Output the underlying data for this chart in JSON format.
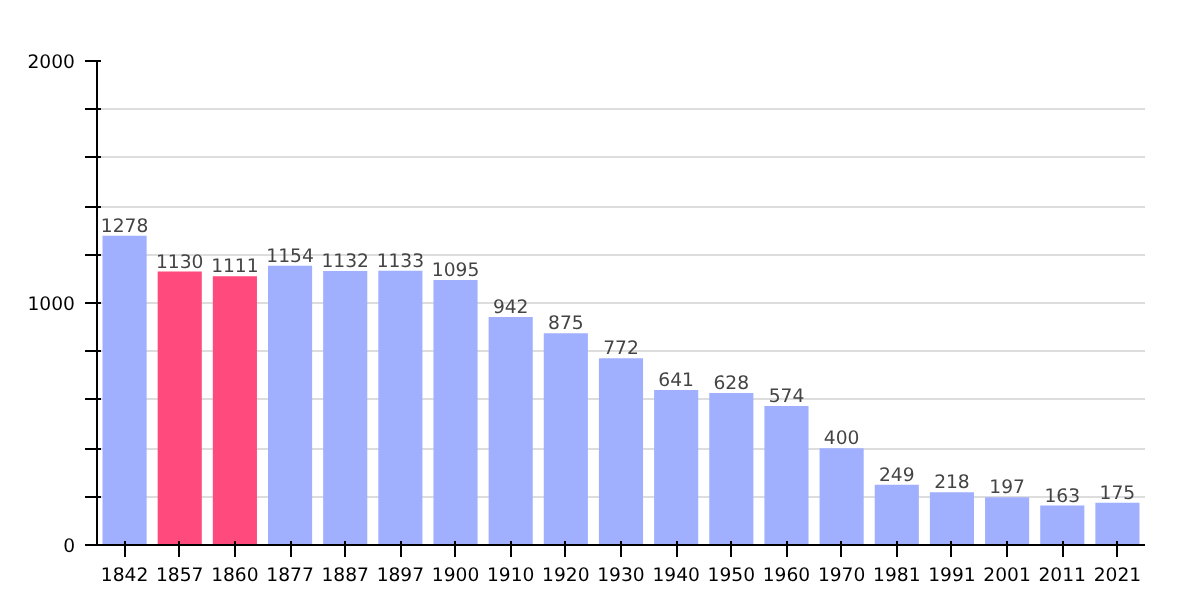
{
  "chart_data": {
    "type": "bar",
    "categories": [
      "1842",
      "1857",
      "1860",
      "1877",
      "1887",
      "1897",
      "1900",
      "1910",
      "1920",
      "1930",
      "1940",
      "1950",
      "1960",
      "1970",
      "1981",
      "1991",
      "2001",
      "2011",
      "2021"
    ],
    "values": [
      1278,
      1130,
      1111,
      1154,
      1132,
      1133,
      1095,
      942,
      875,
      772,
      641,
      628,
      574,
      400,
      249,
      218,
      197,
      163,
      175
    ],
    "colors": [
      "#a0b0ff",
      "#ff4a7d",
      "#ff4a7d",
      "#a0b0ff",
      "#a0b0ff",
      "#a0b0ff",
      "#a0b0ff",
      "#a0b0ff",
      "#a0b0ff",
      "#a0b0ff",
      "#a0b0ff",
      "#a0b0ff",
      "#a0b0ff",
      "#a0b0ff",
      "#a0b0ff",
      "#a0b0ff",
      "#a0b0ff",
      "#a0b0ff",
      "#a0b0ff"
    ],
    "ylim": [
      0,
      2000
    ],
    "yticks": [
      0,
      {
        "value": 200,
        "label": null
      },
      {
        "value": 400,
        "label": null
      },
      {
        "value": 600,
        "label": null
      },
      {
        "value": 800,
        "label": null
      },
      1000,
      {
        "value": 1200,
        "label": null
      },
      {
        "value": 1400,
        "label": null
      },
      {
        "value": 1600,
        "label": null
      },
      {
        "value": 1800,
        "label": null
      },
      2000
    ],
    "grid": "y",
    "data_labels": true
  }
}
